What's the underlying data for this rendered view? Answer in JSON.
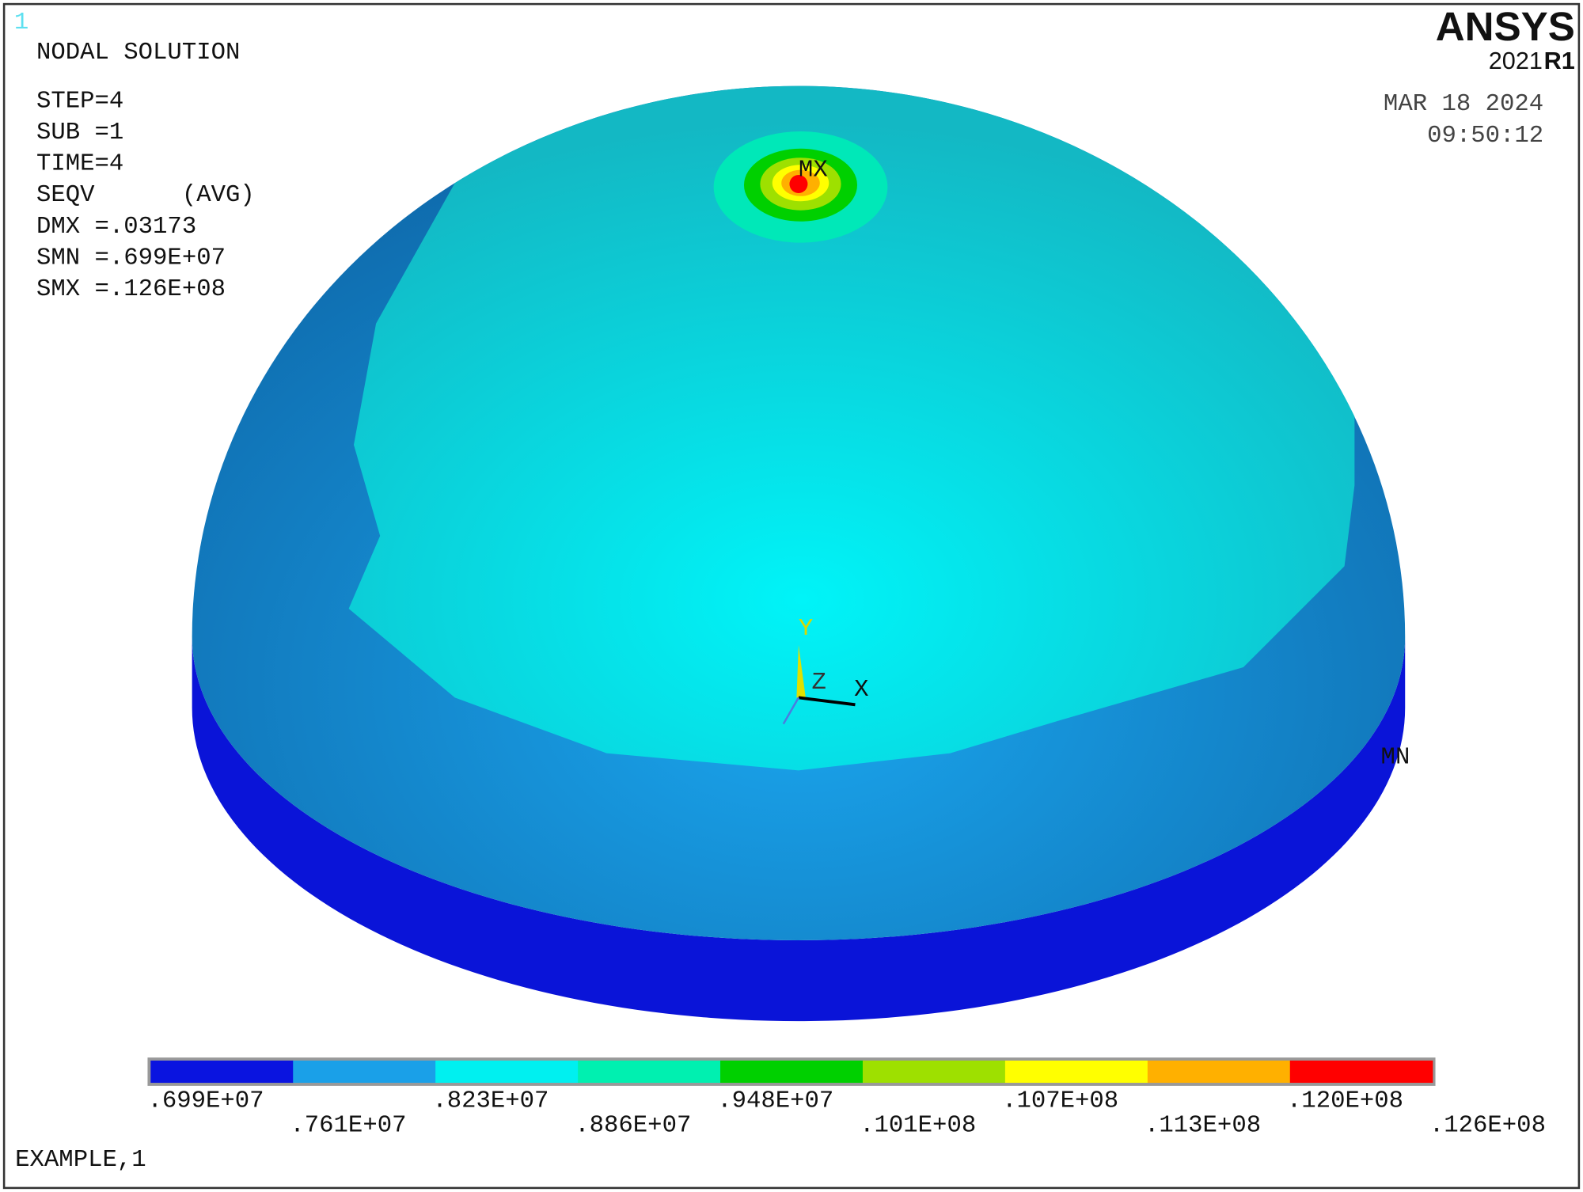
{
  "window_number": "1",
  "header": {
    "lines": [
      "NODAL SOLUTION",
      "STEP=4",
      "SUB =1",
      "TIME=4",
      "SEQV      (AVG)",
      "DMX =.03173",
      "SMN =.699E+07",
      "SMX =.126E+08"
    ]
  },
  "brand": {
    "name": "ANSYS",
    "version": "2021",
    "release": "R1"
  },
  "date": "MAR 18 2024",
  "time": "09:50:12",
  "markers": {
    "max": "MX",
    "min": "MN"
  },
  "triad": {
    "x": "X",
    "y": "Y",
    "z": "Z"
  },
  "legend": {
    "colors": [
      "#0a14e0",
      "#1aa0e8",
      "#00f0f0",
      "#00f0b0",
      "#00d000",
      "#9ee000",
      "#ffff00",
      "#ffb000",
      "#ff0000"
    ],
    "labels": [
      ".699E+07",
      ".761E+07",
      ".823E+07",
      ".886E+07",
      ".948E+07",
      ".101E+08",
      ".107E+08",
      ".113E+08",
      ".120E+08",
      ".126E+08"
    ]
  },
  "footer": "EXAMPLE,1"
}
